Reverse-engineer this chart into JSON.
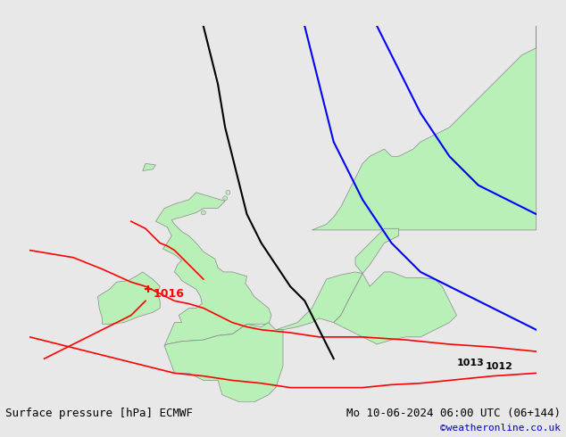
{
  "title_left": "Surface pressure [hPa] ECMWF",
  "title_right": "Mo 10-06-2024 06:00 UTC (06+144)",
  "credit": "©weatheronline.co.uk",
  "credit_color": "#0000cc",
  "bg_color": "#e8e8e8",
  "land_color": "#b8f0b8",
  "border_color": "#888888",
  "figsize": [
    6.34,
    4.9
  ],
  "dpi": 100,
  "isobar_1016_label": "1016",
  "isobar_1013_label": "1013",
  "isobar_1012_label": "1012",
  "label_color_red": "#ff0000",
  "label_color_blue": "#0000ff",
  "label_color_black": "#000000",
  "text_fontsize": 9,
  "label_fontsize": 9,
  "credit_fontsize": 8
}
